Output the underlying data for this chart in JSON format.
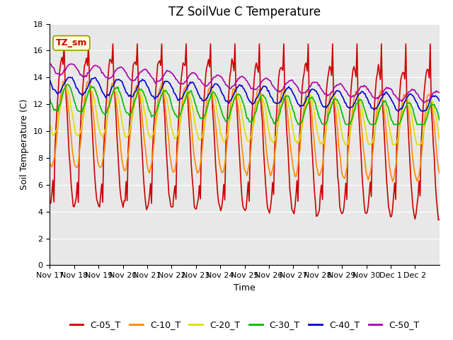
{
  "title": "TZ SoilVue C Temperature",
  "ylabel": "Soil Temperature (C)",
  "xlabel": "Time",
  "annotation": "TZ_sm",
  "ylim": [
    0,
    18
  ],
  "yticks": [
    0,
    2,
    4,
    6,
    8,
    10,
    12,
    14,
    16,
    18
  ],
  "plot_bg_color": "#e8e8e8",
  "fig_bg_color": "#ffffff",
  "num_days": 16,
  "xtick_labels": [
    "Nov 17",
    "Nov 18",
    "Nov 19",
    "Nov 20",
    "Nov 21",
    "Nov 22",
    "Nov 23",
    "Nov 24",
    "Nov 25",
    "Nov 26",
    "Nov 27",
    "Nov 28",
    "Nov 29",
    "Nov 30",
    "Dec 1",
    "Dec 2"
  ],
  "series_colors": [
    "#cc0000",
    "#ff8800",
    "#dddd00",
    "#00bb00",
    "#0000cc",
    "#aa00aa"
  ],
  "series_names": [
    "C-05_T",
    "C-10_T",
    "C-20_T",
    "C-30_T",
    "C-40_T",
    "C-50_T"
  ],
  "title_fontsize": 12,
  "axis_label_fontsize": 9,
  "tick_fontsize": 8,
  "legend_fontsize": 9
}
